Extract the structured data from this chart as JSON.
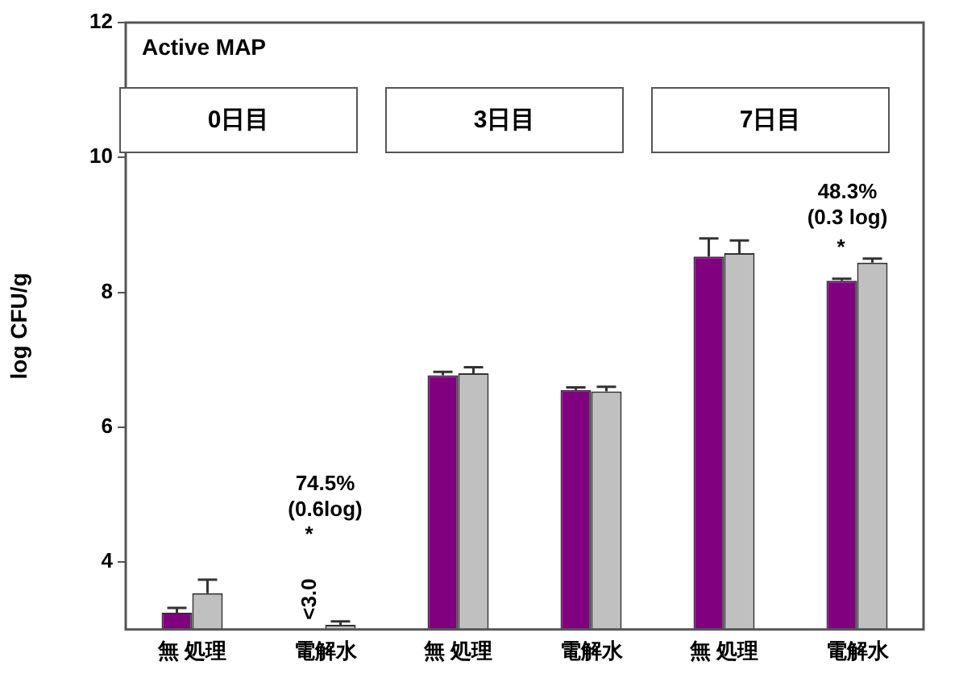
{
  "chart_data": {
    "type": "bar",
    "title": "Active MAP",
    "ylabel": "log CFU/g",
    "categories": [
      "無 処理",
      "電解水",
      "無 処理",
      "電解水",
      "無 処理",
      "電解水"
    ],
    "series": [
      {
        "color": "#800080",
        "values": [
          3.25,
          null,
          6.77,
          6.55,
          8.53,
          8.17
        ],
        "errors": [
          [
            3.25,
            3.32
          ],
          null,
          [
            6.77,
            6.82
          ],
          [
            6.55,
            6.59
          ],
          [
            8.53,
            8.8
          ],
          [
            8.17,
            8.2
          ]
        ],
        "value_labels": [
          null,
          "<3.0",
          null,
          null,
          null,
          null
        ]
      },
      {
        "color": "#c0c0c0",
        "values": [
          3.54,
          3.07,
          6.8,
          6.53,
          8.58,
          8.44
        ],
        "errors": [
          [
            3.54,
            3.74
          ],
          [
            3.07,
            3.12
          ],
          [
            6.8,
            6.89
          ],
          [
            6.53,
            6.6
          ],
          [
            8.58,
            8.77
          ],
          [
            8.44,
            8.5
          ]
        ]
      }
    ],
    "ylim": [
      3,
      12
    ],
    "yticks": [
      4,
      6,
      8,
      10,
      12
    ],
    "grid": false,
    "legend": false,
    "annotations": [
      "0日目",
      "3日目",
      "7日目",
      "74.5%\n(0.6log)",
      "*",
      "48.3%\n(0.3 log)",
      "*"
    ]
  }
}
